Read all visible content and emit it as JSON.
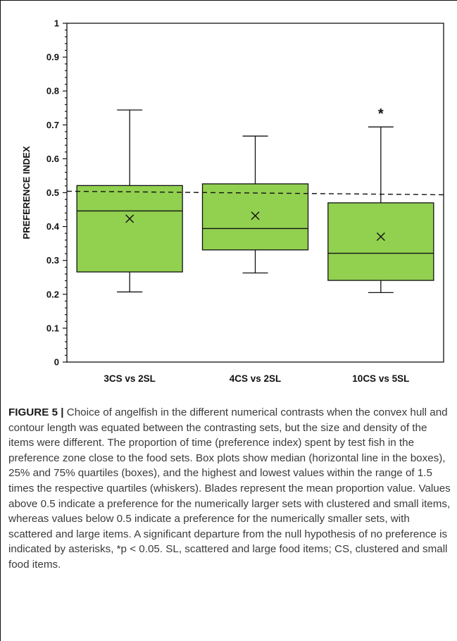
{
  "chart_data": {
    "type": "box",
    "ylabel": "PREFERENCE INDEX",
    "ylim": [
      0,
      1
    ],
    "yticks": [
      "0",
      "0.1",
      "0.2",
      "0.3",
      "0.4",
      "0.5",
      "0.6",
      "0.7",
      "0.8",
      "0.9",
      "1"
    ],
    "categories": [
      "3CS vs 2SL",
      "4CS vs 2SL",
      "10CS vs 5SL"
    ],
    "boxes": [
      {
        "category": "3CS vs 2SL",
        "min": 0.207,
        "q1": 0.266,
        "median": 0.446,
        "q3": 0.521,
        "max": 0.744,
        "mean": 0.423,
        "significance": ""
      },
      {
        "category": "4CS vs 2SL",
        "min": 0.263,
        "q1": 0.331,
        "median": 0.394,
        "q3": 0.526,
        "max": 0.667,
        "mean": 0.432,
        "significance": ""
      },
      {
        "category": "10CS vs 5SL",
        "min": 0.205,
        "q1": 0.241,
        "median": 0.321,
        "q3": 0.47,
        "max": 0.694,
        "mean": 0.37,
        "significance": "*"
      }
    ],
    "reference_line": 0.5,
    "box_color": "#92d050",
    "grid": false
  },
  "caption": {
    "label": "FIGURE 5 |",
    "text": " Choice of angelfish in the different numerical contrasts when the convex hull and contour length was equated between the contrasting sets, but the size and density of the items were different. The proportion of time (preference index) spent by test fish in the preference zone close to the food sets. Box plots show median (horizontal line in the boxes), 25% and 75% quartiles (boxes), and the highest and lowest values within the range of 1.5 times the respective quartiles (whiskers). Blades represent the mean proportion value. Values above 0.5 indicate a preference for the numerically larger sets with clustered and small items, whereas values below 0.5 indicate a preference for the numerically smaller sets, with scattered and large items. A significant departure from the null hypothesis of no preference is indicated by asterisks, *p < 0.05. SL, scattered and large food items; CS, clustered and small food items."
  }
}
